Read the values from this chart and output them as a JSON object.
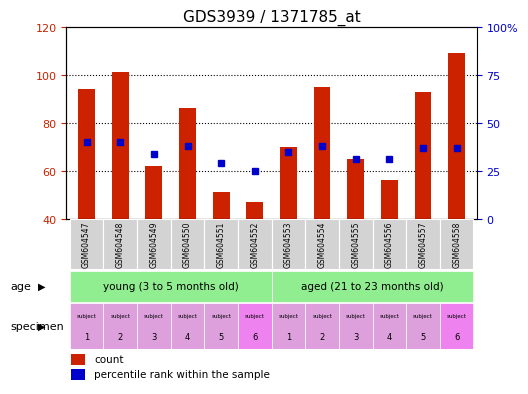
{
  "title": "GDS3939 / 1371785_at",
  "samples": [
    "GSM604547",
    "GSM604548",
    "GSM604549",
    "GSM604550",
    "GSM604551",
    "GSM604552",
    "GSM604553",
    "GSM604554",
    "GSM604555",
    "GSM604556",
    "GSM604557",
    "GSM604558"
  ],
  "count_values": [
    94,
    101,
    62,
    86,
    51,
    47,
    70,
    95,
    65,
    56,
    93,
    109
  ],
  "percentile_values": [
    40,
    40,
    34,
    38,
    29,
    25,
    35,
    38,
    31,
    31,
    37,
    37
  ],
  "ylim_left": [
    40,
    120
  ],
  "ylim_right": [
    0,
    100
  ],
  "yticks_left": [
    40,
    60,
    80,
    100,
    120
  ],
  "yticks_right": [
    0,
    25,
    50,
    75,
    100
  ],
  "ytick_labels_right": [
    "0",
    "25",
    "50",
    "75",
    "100%"
  ],
  "bar_color": "#cc2200",
  "dot_color": "#0000cc",
  "bar_width": 0.5,
  "groups": [
    {
      "label": "young (3 to 5 months old)",
      "start": 0,
      "end": 5,
      "color": "#90ee90"
    },
    {
      "label": "aged (21 to 23 months old)",
      "start": 6,
      "end": 11,
      "color": "#90ee90"
    }
  ],
  "subject_numbers": [
    "1",
    "2",
    "3",
    "4",
    "5",
    "6",
    "1",
    "2",
    "3",
    "4",
    "5",
    "6"
  ],
  "subject_colors": [
    "#dda0dd",
    "#dda0dd",
    "#dda0dd",
    "#dda0dd",
    "#dda0dd",
    "#ee82ee",
    "#dda0dd",
    "#dda0dd",
    "#dda0dd",
    "#dda0dd",
    "#dda0dd",
    "#ee82ee"
  ],
  "age_label": "age",
  "specimen_label": "specimen",
  "legend_count_label": "count",
  "legend_percentile_label": "percentile rank within the sample",
  "tick_color_left": "#cc2200",
  "tick_color_right": "#0000cc",
  "grid_color": "#000000",
  "title_fontsize": 11,
  "axis_fontsize": 8,
  "bar_bottom": 40,
  "fig_width": 5.13,
  "fig_height": 3.84,
  "fig_dpi": 100
}
